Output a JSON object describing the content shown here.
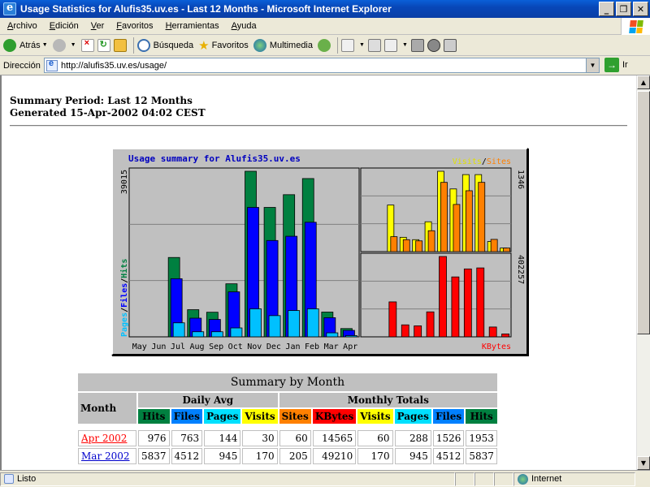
{
  "window": {
    "title": "Usage Statistics for Alufis35.uv.es - Last 12 Months - Microsoft Internet Explorer",
    "buttons": [
      "_",
      "❐",
      "✕"
    ]
  },
  "menu": [
    "Archivo",
    "Edición",
    "Ver",
    "Favoritos",
    "Herramientas",
    "Ayuda"
  ],
  "toolbar": {
    "back": "Atrás",
    "search": "Búsqueda",
    "favorites": "Favoritos",
    "media": "Multimedia"
  },
  "address": {
    "label": "Dirección",
    "url": "http://alufis35.uv.es/usage/",
    "go": "Ir"
  },
  "page": {
    "summary_period": "Summary Period: Last 12 Months",
    "generated": "Generated 15-Apr-2002 04:02 CEST"
  },
  "chart_data": {
    "type": "bar",
    "title": "Usage summary for Alufis35.uv.es",
    "categories": [
      "May",
      "Jun",
      "Jul",
      "Aug",
      "Sep",
      "Oct",
      "Nov",
      "Dec",
      "Jan",
      "Feb",
      "Mar",
      "Apr"
    ],
    "left_axis": {
      "max_label": "39015",
      "label_parts": [
        "Pages",
        "/",
        "Files",
        "/",
        "Hits"
      ]
    },
    "series_left": [
      {
        "name": "Hits",
        "color": "#008040",
        "values": [
          0,
          0,
          18700,
          6400,
          5800,
          12500,
          39015,
          30500,
          33500,
          37300,
          5837,
          1953
        ]
      },
      {
        "name": "Files",
        "color": "#0000ff",
        "values": [
          0,
          0,
          13700,
          4400,
          4100,
          10600,
          30500,
          22700,
          23700,
          27000,
          4512,
          1526
        ]
      },
      {
        "name": "Pages",
        "color": "#00c0ff",
        "values": [
          0,
          0,
          3300,
          1200,
          1200,
          2100,
          6600,
          5000,
          6200,
          6600,
          945,
          288
        ]
      }
    ],
    "top_right": {
      "max_label": "1346",
      "legend": [
        "Visits",
        "/",
        "Sites"
      ]
    },
    "series_visits_sites": [
      {
        "name": "Visits",
        "color": "#ffff00",
        "values": [
          0,
          0,
          780,
          240,
          200,
          500,
          1346,
          1050,
          1290,
          1290,
          170,
          60
        ]
      },
      {
        "name": "Sites",
        "color": "#ff8000",
        "values": [
          0,
          0,
          250,
          200,
          180,
          350,
          1160,
          790,
          1020,
          1160,
          205,
          60
        ]
      }
    ],
    "bottom_right": {
      "max_label": "402257",
      "legend": "KBytes"
    },
    "series_kbytes": [
      {
        "name": "KBytes",
        "color": "#ff0000",
        "values": [
          0,
          0,
          175000,
          60000,
          55000,
          125000,
          402257,
          300000,
          340000,
          345000,
          49210,
          14565
        ]
      }
    ]
  },
  "table": {
    "caption": "Summary by Month",
    "month_header": "Month",
    "daily_avg": "Daily Avg",
    "monthly_totals": "Monthly Totals",
    "cols": [
      {
        "label": "Hits",
        "bg": "#008040",
        "fg": "#000000"
      },
      {
        "label": "Files",
        "bg": "#0080ff",
        "fg": "#000000"
      },
      {
        "label": "Pages",
        "bg": "#00e0ff",
        "fg": "#000000"
      },
      {
        "label": "Visits",
        "bg": "#ffff00",
        "fg": "#000000"
      },
      {
        "label": "Sites",
        "bg": "#ff8000",
        "fg": "#000000"
      },
      {
        "label": "KBytes",
        "bg": "#ff0000",
        "fg": "#000000"
      },
      {
        "label": "Visits",
        "bg": "#ffff00",
        "fg": "#000000"
      },
      {
        "label": "Pages",
        "bg": "#00e0ff",
        "fg": "#000000"
      },
      {
        "label": "Files",
        "bg": "#0080ff",
        "fg": "#000000"
      },
      {
        "label": "Hits",
        "bg": "#008040",
        "fg": "#000000"
      }
    ],
    "rows": [
      {
        "month": "Apr 2002",
        "color": "#ff0000",
        "vals": [
          "976",
          "763",
          "144",
          "30",
          "60",
          "14565",
          "60",
          "288",
          "1526",
          "1953"
        ]
      },
      {
        "month": "Mar 2002",
        "color": "#0000cc",
        "vals": [
          "5837",
          "4512",
          "945",
          "170",
          "205",
          "49210",
          "170",
          "945",
          "4512",
          "5837"
        ]
      }
    ]
  },
  "status": {
    "text": "Listo",
    "zone": "Internet"
  }
}
